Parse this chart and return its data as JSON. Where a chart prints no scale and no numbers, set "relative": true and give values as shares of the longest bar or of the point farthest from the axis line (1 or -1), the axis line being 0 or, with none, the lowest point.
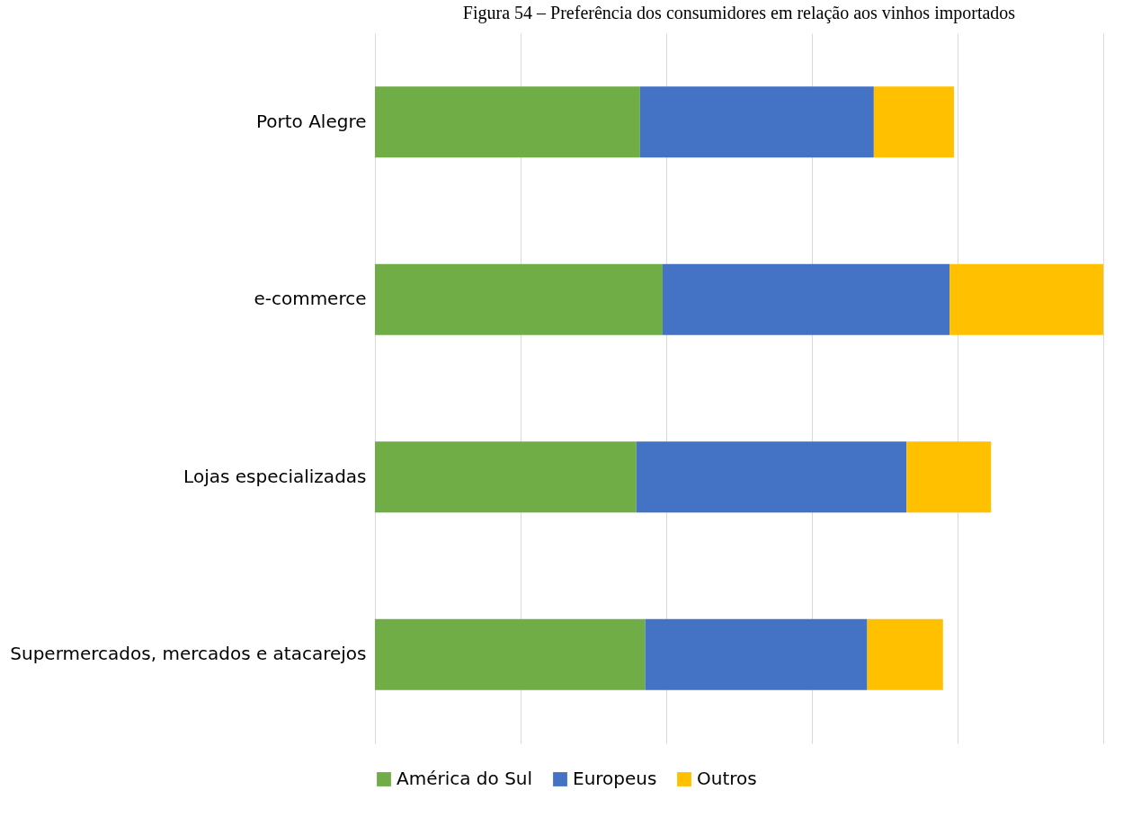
{
  "chart_data": {
    "type": "bar",
    "title": "Figura 54 – Preferência dos consumidores em relação aos vinhos importados",
    "orientation": "horizontal",
    "stacked": true,
    "relative": true,
    "grid": "x",
    "legend": "bottom",
    "categories": [
      "Porto Alegre",
      "e-commerce",
      "Lojas especializadas",
      "Supermercados, mercados e atacarejos"
    ],
    "series": [
      {
        "name": "América do Sul",
        "color": "#70ad47",
        "values": [
          0.364,
          0.395,
          0.359,
          0.371
        ]
      },
      {
        "name": "Europeus",
        "color": "#4472c4",
        "values": [
          0.321,
          0.394,
          0.371,
          0.305
        ]
      },
      {
        "name": "Outros",
        "color": "#ffc000",
        "values": [
          0.11,
          0.211,
          0.116,
          0.104
        ]
      }
    ]
  }
}
